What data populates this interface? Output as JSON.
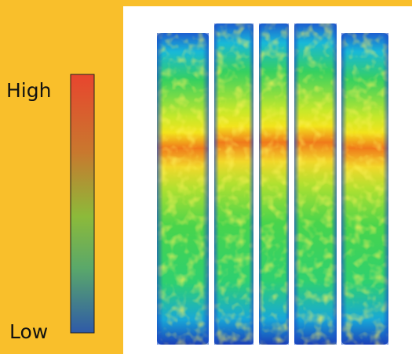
{
  "colorbar": {
    "high_label": "High",
    "low_label": "Low"
  }
}
